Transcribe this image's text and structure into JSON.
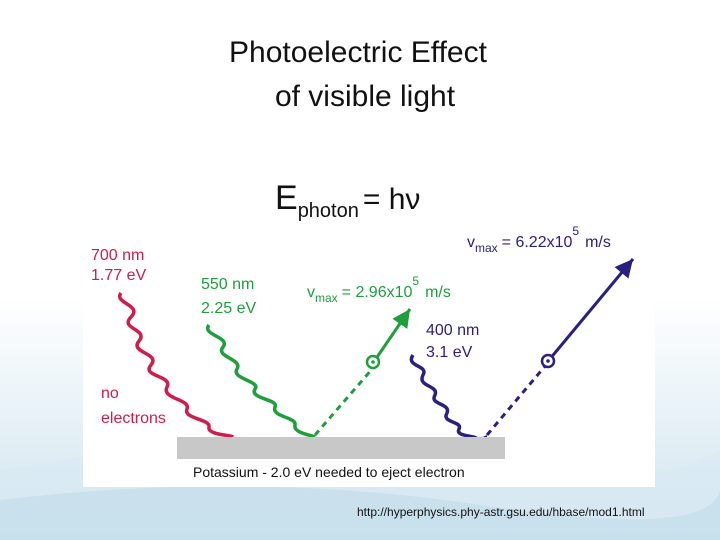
{
  "title_line1": "Photoelectric Effect",
  "title_line2": "of visible light",
  "equation": {
    "lhs": "E",
    "sub": "photon",
    "rhs": "= hν"
  },
  "red": {
    "wavelength": "700 nm",
    "energy": "1.77 eV",
    "note_line1": "no",
    "note_line2": "electrons",
    "color": "#d01c4a"
  },
  "green": {
    "wavelength": "550 nm",
    "energy": "2.25 eV",
    "color": "#1f9e3c",
    "vmax_label": "v",
    "vmax_sub": "max",
    "vmax_value": "= 2.96x10",
    "vmax_exp": "5",
    "vmax_unit": "m/s"
  },
  "violet": {
    "wavelength": "400 nm",
    "energy": "3.1 eV",
    "color": "#2a2080",
    "vmax_label": "v",
    "vmax_sub": "max",
    "vmax_value": "= 6.22x10",
    "vmax_exp": "5",
    "vmax_unit": "m/s"
  },
  "plate_label": "Potassium - 2.0 eV needed to eject electron",
  "source_url": "http://hyperphysics.phy-astr.gsu.edu/hbase/mod1.html"
}
